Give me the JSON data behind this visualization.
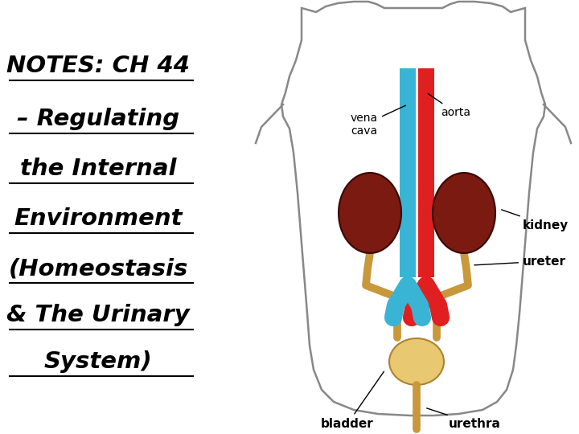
{
  "bg_color": "#ffffff",
  "title_lines": [
    "NOTES: CH 44",
    "– Regulating",
    "the Internal",
    "Environment",
    "(Homeostasis",
    "& The Urinary",
    "System)"
  ],
  "title_fontsize": 21,
  "title_color": "#000000",
  "colors": {
    "vena_cava": "#3ab4d4",
    "aorta": "#e02020",
    "kidney": "#7a1a10",
    "ureter": "#c8983a",
    "bladder": "#e8c870",
    "body_outline": "#888888"
  },
  "labels": {
    "vena_cava": "vena\ncava",
    "aorta": "aorta",
    "kidney": "kidney",
    "ureter": "ureter",
    "bladder": "bladder",
    "urethra": "urethra"
  },
  "label_fontsize": 10,
  "label_bold_fontsize": 11
}
